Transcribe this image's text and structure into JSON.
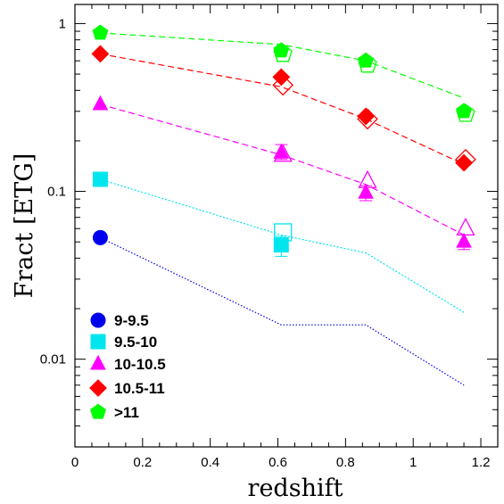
{
  "chart_data": {
    "type": "scatter",
    "xlabel": "redshift",
    "ylabel": "Fract [ETG]",
    "xlim": [
      0,
      1.25
    ],
    "ylim": [
      0.003,
      1.3
    ],
    "yscale": "log",
    "grid": false,
    "legend_position": "bottom-left",
    "x_ticks": [
      0,
      0.2,
      0.4,
      0.6,
      0.8,
      1,
      1.2
    ],
    "x_tick_labels": [
      "0",
      "0.2",
      "0.4",
      "0.6",
      "0.8",
      "1",
      "1.2"
    ],
    "y_ticks": [
      0.01,
      0.1,
      1
    ],
    "y_tick_labels": [
      "0.01",
      "0.1",
      "1"
    ],
    "series": [
      {
        "name": "9-9.5",
        "color": "#0000ee",
        "marker": "circle",
        "points": [
          {
            "x": 0.075,
            "y": 0.053
          }
        ],
        "open_points": [],
        "line": {
          "style": "dotted",
          "x": [
            0.075,
            0.61,
            0.86,
            1.15
          ],
          "y": [
            0.053,
            0.016,
            0.016,
            0.007
          ]
        }
      },
      {
        "name": "9.5-10",
        "color": "#00e5ee",
        "marker": "square",
        "points": [
          {
            "x": 0.075,
            "y": 0.118
          },
          {
            "x": 0.61,
            "y": 0.048,
            "err": [
              0.041,
              0.054
            ]
          }
        ],
        "open_points": [
          {
            "x": 0.615,
            "y": 0.057
          }
        ],
        "line": {
          "style": "dashed-dotted",
          "x": [
            0.075,
            0.61,
            0.86,
            1.15
          ],
          "y": [
            0.118,
            0.055,
            0.043,
            0.019
          ]
        }
      },
      {
        "name": "10-10.5",
        "color": "#ff00ff",
        "marker": "triangle",
        "points": [
          {
            "x": 0.075,
            "y": 0.33
          },
          {
            "x": 0.61,
            "y": 0.17,
            "err": [
              0.155,
              0.19
            ]
          },
          {
            "x": 0.86,
            "y": 0.098,
            "err": [
              0.088,
              0.108
            ]
          },
          {
            "x": 1.15,
            "y": 0.05,
            "err": [
              0.045,
              0.055
            ]
          }
        ],
        "open_points": [
          {
            "x": 0.615,
            "y": 0.165
          },
          {
            "x": 0.865,
            "y": 0.115
          },
          {
            "x": 1.155,
            "y": 0.06
          }
        ],
        "line": {
          "style": "dashed",
          "x": [
            0.075,
            0.61,
            0.86,
            1.15
          ],
          "y": [
            0.33,
            0.165,
            0.11,
            0.055
          ]
        }
      },
      {
        "name": "10.5-11",
        "color": "#ff0000",
        "marker": "diamond",
        "points": [
          {
            "x": 0.075,
            "y": 0.66
          },
          {
            "x": 0.61,
            "y": 0.48
          },
          {
            "x": 0.86,
            "y": 0.28
          },
          {
            "x": 1.15,
            "y": 0.148
          }
        ],
        "open_points": [
          {
            "x": 0.615,
            "y": 0.43
          },
          {
            "x": 0.865,
            "y": 0.27
          },
          {
            "x": 1.155,
            "y": 0.155
          }
        ],
        "line": {
          "style": "dashed",
          "x": [
            0.075,
            0.61,
            0.86,
            1.15
          ],
          "y": [
            0.66,
            0.42,
            0.27,
            0.145
          ]
        }
      },
      {
        "name": ">11",
        "color": "#00ff00",
        "marker": "pentagon",
        "points": [
          {
            "x": 0.075,
            "y": 0.88
          },
          {
            "x": 0.61,
            "y": 0.69
          },
          {
            "x": 0.86,
            "y": 0.6
          },
          {
            "x": 1.15,
            "y": 0.3
          }
        ],
        "open_points": [
          {
            "x": 0.615,
            "y": 0.66
          },
          {
            "x": 0.865,
            "y": 0.57
          },
          {
            "x": 1.155,
            "y": 0.29
          }
        ],
        "line": {
          "style": "dashed",
          "x": [
            0.075,
            0.61,
            0.86,
            1.15
          ],
          "y": [
            0.88,
            0.75,
            0.6,
            0.36
          ]
        }
      }
    ]
  }
}
